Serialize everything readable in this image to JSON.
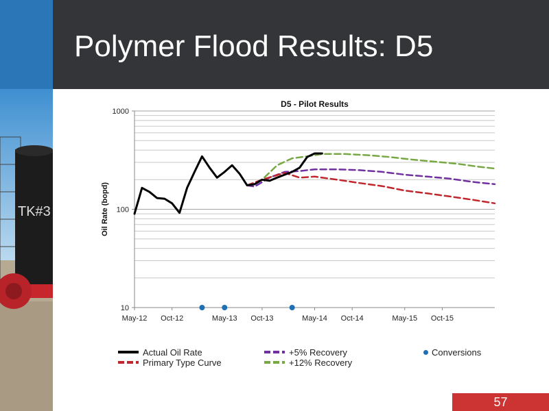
{
  "slide": {
    "title": "Polymer Flood Results: D5",
    "page_number": "57"
  },
  "colors": {
    "header_bg": "#333538",
    "accent_blue": "#2b76b7",
    "page_box": "#cc3333"
  },
  "chart_data": {
    "type": "line",
    "title": "D5 -  Pilot Results",
    "ylabel": "Oil Rate (bopd)",
    "xlabel": "",
    "y_scale": "log",
    "ylim": [
      10,
      1000
    ],
    "y_ticks": [
      "10",
      "100",
      "1000"
    ],
    "xlim": [
      "2012-05",
      "2016-05"
    ],
    "x_ticks": [
      "May-12",
      "Oct-12",
      "May-13",
      "Oct-13",
      "May-14",
      "Oct-14",
      "May-15",
      "Oct-15"
    ],
    "grid": true,
    "legend_position": "bottom",
    "series": [
      {
        "name": "Actual Oil Rate",
        "color": "#000000",
        "style": "solid",
        "points": [
          [
            "2012-05",
            90
          ],
          [
            "2012-06",
            165
          ],
          [
            "2012-07",
            150
          ],
          [
            "2012-08",
            130
          ],
          [
            "2012-09",
            128
          ],
          [
            "2012-10",
            115
          ],
          [
            "2012-11",
            92
          ],
          [
            "2012-12",
            165
          ],
          [
            "2013-01",
            240
          ],
          [
            "2013-02",
            345
          ],
          [
            "2013-03",
            265
          ],
          [
            "2013-04",
            210
          ],
          [
            "2013-05",
            240
          ],
          [
            "2013-06",
            280
          ],
          [
            "2013-07",
            230
          ],
          [
            "2013-08",
            175
          ],
          [
            "2013-09",
            180
          ],
          [
            "2013-10",
            200
          ],
          [
            "2013-11",
            195
          ],
          [
            "2013-12",
            210
          ],
          [
            "2014-01",
            225
          ],
          [
            "2014-02",
            240
          ],
          [
            "2014-03",
            265
          ],
          [
            "2014-04",
            340
          ],
          [
            "2014-05",
            370
          ],
          [
            "2014-06",
            370
          ]
        ]
      },
      {
        "name": "Primary Type Curve",
        "color": "#c0262c",
        "style": "dashed",
        "points": [
          [
            "2013-08",
            175
          ],
          [
            "2013-10",
            200
          ],
          [
            "2014-01",
            235
          ],
          [
            "2014-03",
            210
          ],
          [
            "2014-05",
            215
          ],
          [
            "2014-08",
            200
          ],
          [
            "2014-11",
            185
          ],
          [
            "2015-02",
            172
          ],
          [
            "2015-05",
            155
          ],
          [
            "2015-08",
            145
          ],
          [
            "2015-11",
            135
          ],
          [
            "2016-02",
            125
          ],
          [
            "2016-05",
            115
          ]
        ]
      },
      {
        "name": "+5% Recovery",
        "color": "#7030a0",
        "style": "dashed",
        "points": [
          [
            "2013-08",
            175
          ],
          [
            "2013-09",
            170
          ],
          [
            "2013-11",
            210
          ],
          [
            "2014-01",
            240
          ],
          [
            "2014-03",
            245
          ],
          [
            "2014-05",
            255
          ],
          [
            "2014-08",
            255
          ],
          [
            "2014-11",
            250
          ],
          [
            "2015-02",
            240
          ],
          [
            "2015-05",
            225
          ],
          [
            "2015-08",
            215
          ],
          [
            "2015-11",
            205
          ],
          [
            "2016-02",
            190
          ],
          [
            "2016-05",
            180
          ]
        ]
      },
      {
        "name": "+12% Recovery",
        "color": "#77a843",
        "style": "dashed",
        "points": [
          [
            "2013-08",
            175
          ],
          [
            "2013-10",
            200
          ],
          [
            "2013-12",
            280
          ],
          [
            "2014-02",
            330
          ],
          [
            "2014-04",
            345
          ],
          [
            "2014-06",
            365
          ],
          [
            "2014-09",
            365
          ],
          [
            "2014-12",
            355
          ],
          [
            "2015-03",
            340
          ],
          [
            "2015-06",
            320
          ],
          [
            "2015-09",
            305
          ],
          [
            "2015-12",
            290
          ],
          [
            "2016-03",
            270
          ],
          [
            "2016-05",
            260
          ]
        ]
      },
      {
        "name": "Conversions",
        "color": "#1f6fb5",
        "style": "markers",
        "points": [
          [
            "2013-02",
            10
          ],
          [
            "2013-05",
            10
          ],
          [
            "2014-02",
            10
          ]
        ]
      }
    ]
  }
}
